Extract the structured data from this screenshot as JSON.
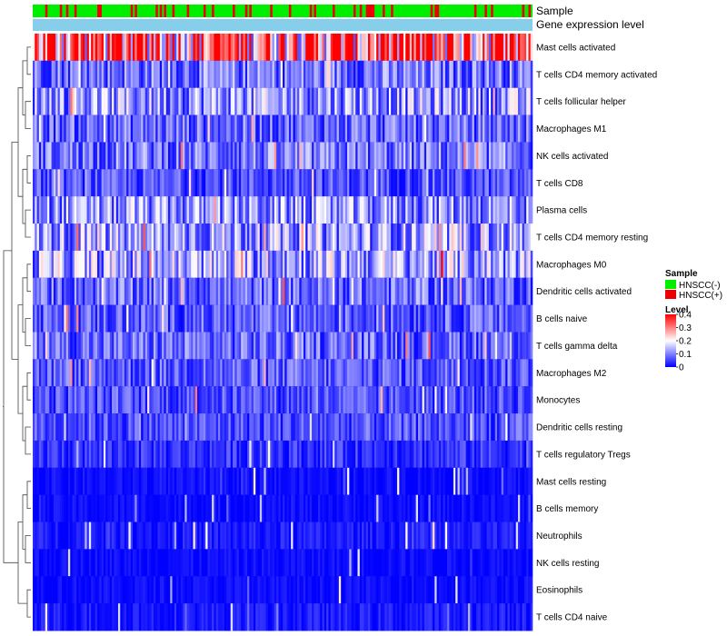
{
  "chart_data": {
    "type": "heatmap",
    "annotations": [
      {
        "name": "Sample",
        "kind": "sample_group"
      },
      {
        "name": "Gene expression level",
        "kind": "constant"
      }
    ],
    "rows": [
      "Mast cells activated",
      "T cells CD4 memory activated",
      "T cells follicular helper",
      "Macrophages M1",
      "NK cells activated",
      "T cells CD8",
      "Plasma cells",
      "T cells CD4 memory resting",
      "Macrophages M0",
      "Dendritic cells activated",
      "B cells naive",
      "T cells gamma delta",
      "Macrophages M2",
      "Monocytes",
      "Dendritic cells resting",
      "T cells regulatory  Tregs",
      "Mast cells resting",
      "B cells memory",
      "Neutrophils",
      "NK cells resting",
      "Eosinophils",
      "T cells CD4 naive"
    ],
    "row_mean_levels": [
      0.33,
      0.09,
      0.12,
      0.08,
      0.09,
      0.06,
      0.11,
      0.12,
      0.13,
      0.08,
      0.07,
      0.08,
      0.07,
      0.06,
      0.06,
      0.04,
      0.01,
      0.01,
      0.02,
      0.01,
      0.01,
      0.02
    ],
    "n_samples": 240,
    "sample_groups": [
      "HNSCC(-)",
      "HNSCC(+)"
    ],
    "hnscc_positive_fraction": 0.22,
    "legend": {
      "sample_title": "Sample",
      "level_title": "Level",
      "level_ticks": [
        0.4,
        0.3,
        0.2,
        0.1,
        0
      ],
      "level_range": [
        0,
        0.4
      ]
    },
    "row_dendrogram": "left"
  },
  "colors": {
    "hnscc_negative": "#00ee00",
    "hnscc_positive": "#ee0000",
    "expression_level_bar": "#87ceeb",
    "scale_low": "#0000ff",
    "scale_mid": "#ffffff",
    "scale_high": "#ff0000"
  }
}
